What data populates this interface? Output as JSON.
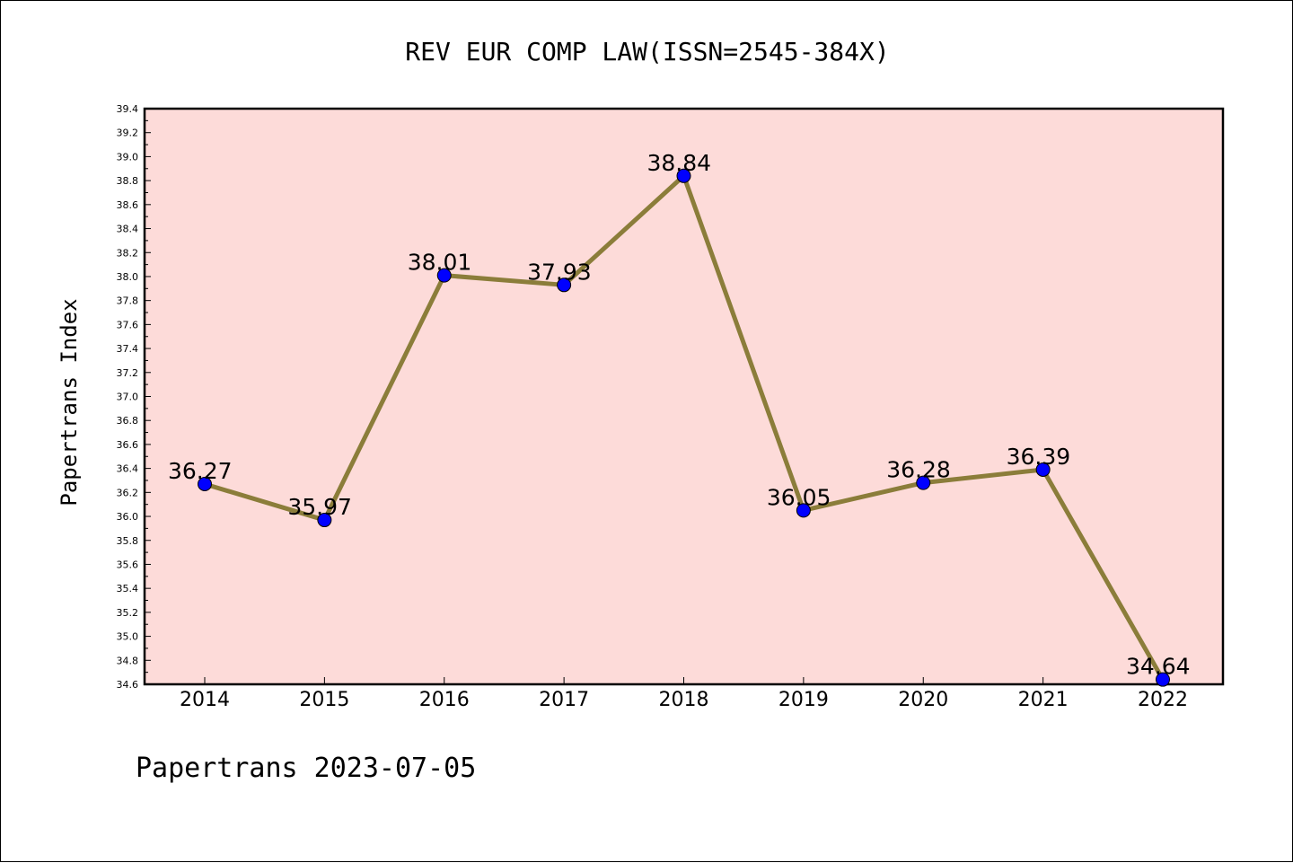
{
  "chart_data": {
    "type": "line",
    "title": "REV EUR COMP LAW(ISSN=2545-384X)",
    "ylabel": "Papertrans Index",
    "xlabel": "",
    "categories": [
      "2014",
      "2015",
      "2016",
      "2017",
      "2018",
      "2019",
      "2020",
      "2021",
      "2022"
    ],
    "values": [
      36.27,
      35.97,
      38.01,
      37.93,
      38.84,
      36.05,
      36.28,
      36.39,
      34.64
    ],
    "data_labels": [
      "36.27",
      "35.97",
      "38.01",
      "37.93",
      "38.84",
      "36.05",
      "36.28",
      "36.39",
      "34.64"
    ],
    "ylim": [
      34.6,
      39.4
    ],
    "yticks": [
      "34.6",
      "34.8",
      "35.0",
      "35.2",
      "35.4",
      "35.6",
      "35.8",
      "36.0",
      "36.2",
      "36.4",
      "36.6",
      "36.8",
      "37.0",
      "37.2",
      "37.4",
      "37.6",
      "37.8",
      "38.0",
      "38.2",
      "38.4",
      "38.6",
      "38.8",
      "39.0",
      "39.2",
      "39.4"
    ],
    "grid": false,
    "colors": {
      "plot_background": "#fddbd9",
      "line": "#8b7d3a",
      "marker": "#0000ff"
    },
    "footer": "Papertrans 2023-07-05"
  }
}
